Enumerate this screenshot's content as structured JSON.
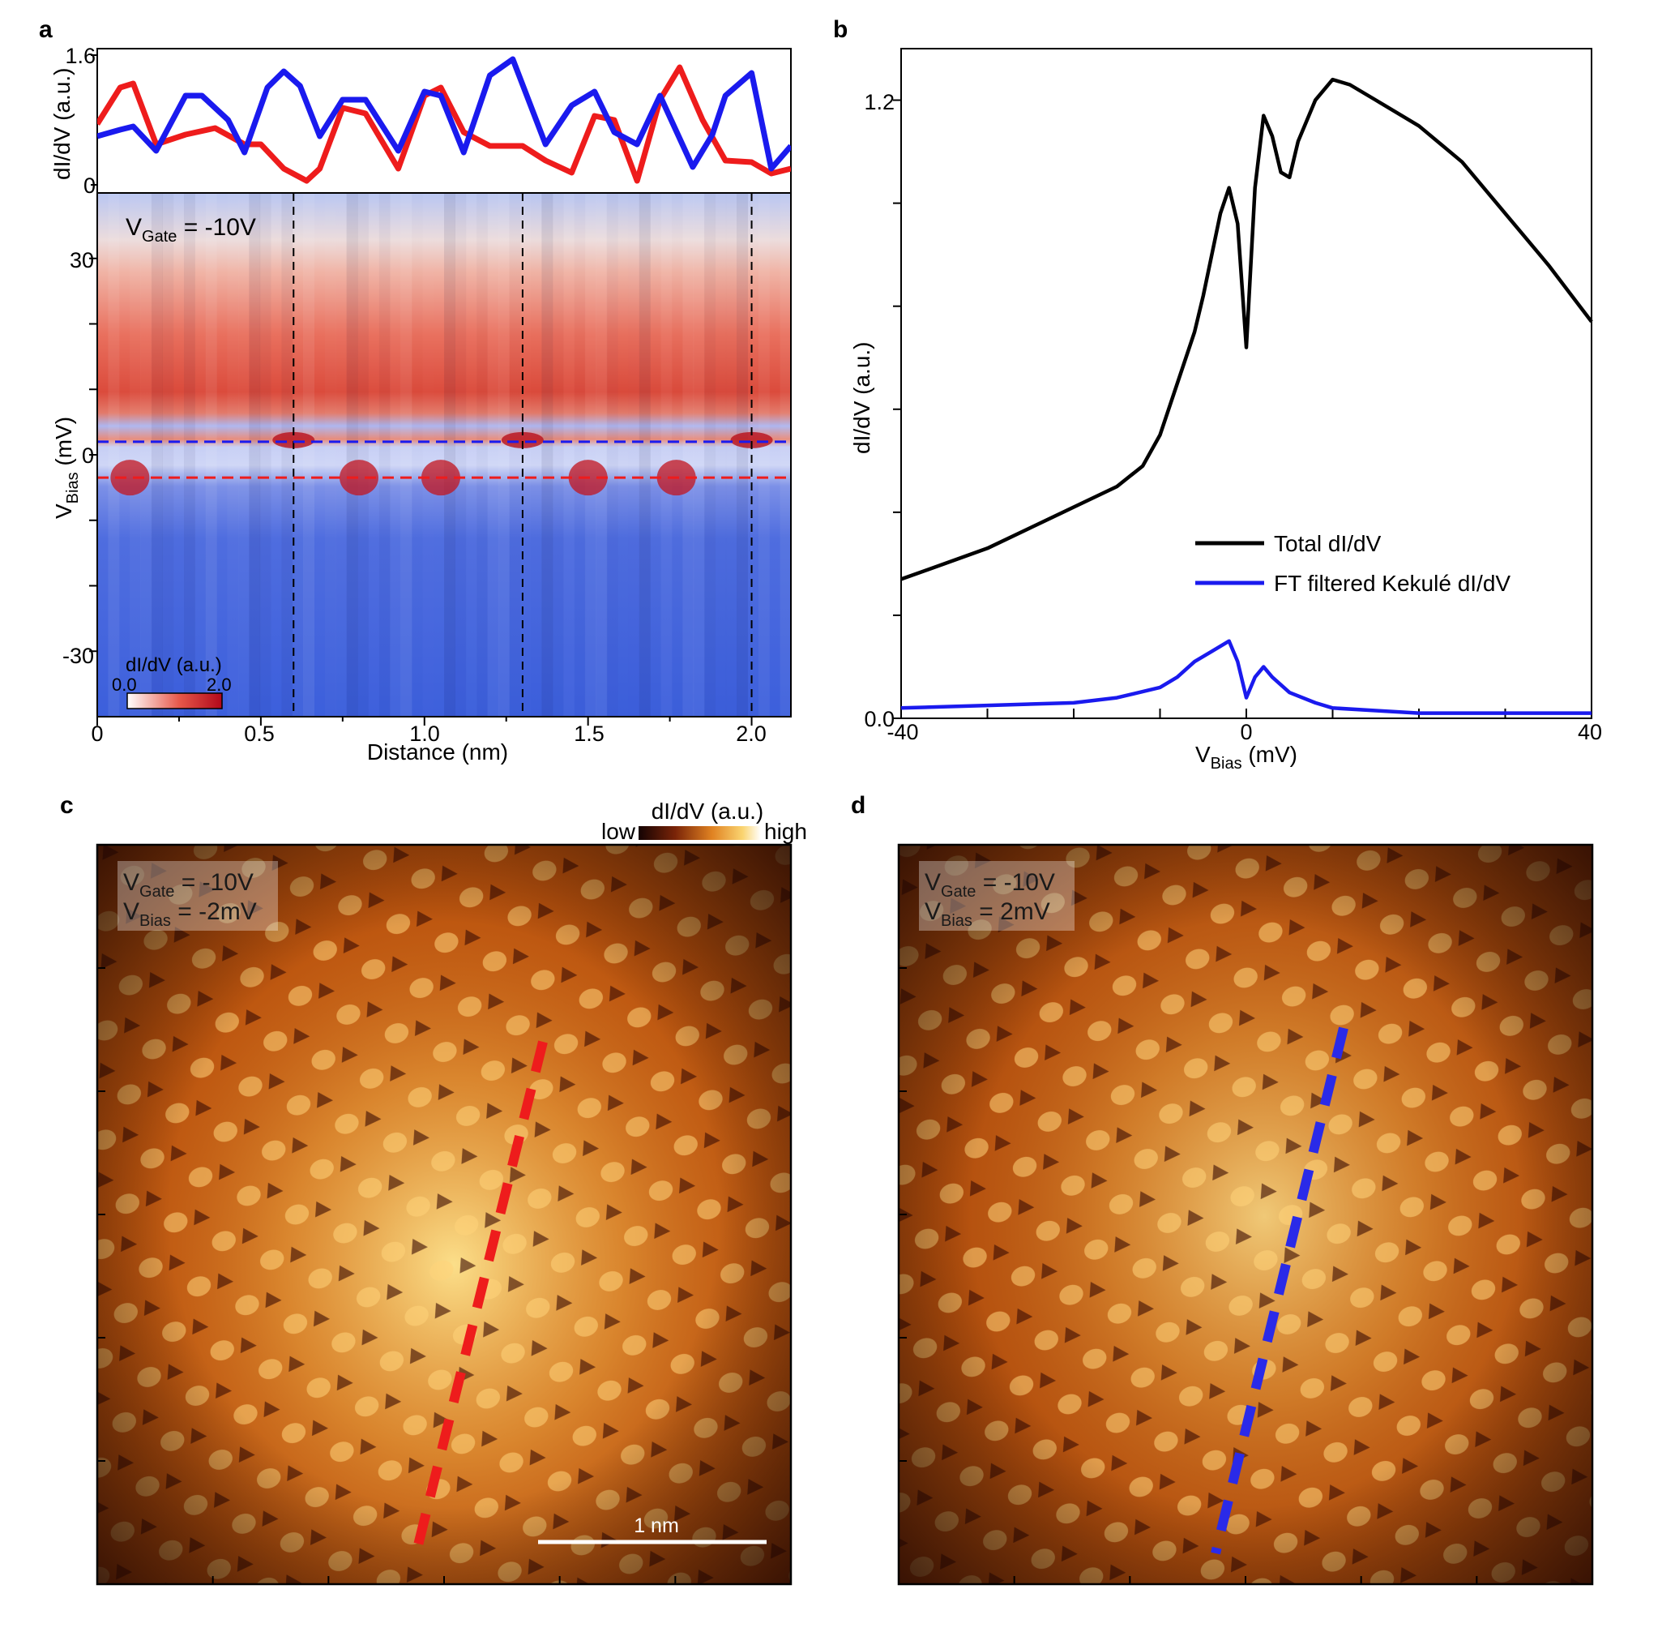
{
  "panels": {
    "a": "a",
    "b": "b",
    "c": "c",
    "d": "d"
  },
  "colors": {
    "red": "#ee1c1c",
    "blue": "#1a1aee",
    "black": "#000000"
  },
  "panel_a": {
    "top_ylabel": "dI/dV (a.u.)",
    "top_yticks": [
      "1.6",
      "0"
    ],
    "top_ylim": [
      0,
      1.6
    ],
    "gate_label_main": "V",
    "gate_label_sub": "Gate",
    "gate_label_value": " = -10V",
    "ylabel_main": "V",
    "ylabel_sub": "Bias",
    "ylabel_unit": " (mV)",
    "yticks": [
      "30",
      "0",
      "-30"
    ],
    "ylim": [
      -40,
      40
    ],
    "xlabel": "Distance (nm)",
    "xticks": [
      "0",
      "0.5",
      "1.0",
      "1.5",
      "2.0"
    ],
    "xlim": [
      0,
      2.12
    ],
    "colorbar_title": "dI/dV (a.u.)",
    "colorbar_min": "0.0",
    "colorbar_max": "2.0",
    "vlines_nm": [
      0.6,
      1.3,
      2.0
    ],
    "hline_blue_mV": 2,
    "hline_red_mV": -2
  },
  "panel_b": {
    "ylabel": "dI/dV (a.u.)",
    "xlabel_main": "V",
    "xlabel_sub": "Bias",
    "xlabel_unit": " (mV)",
    "xticks": [
      "-40",
      "0",
      "40"
    ],
    "yticks": [
      "1.2",
      "0.0"
    ],
    "legend": [
      "Total dI/dV",
      "FT filtered Kekulé dI/dV"
    ]
  },
  "panel_c": {
    "gate_main": "V",
    "gate_sub": "Gate",
    "gate_val": " = -10V",
    "bias_main": "V",
    "bias_sub": "Bias",
    "bias_val": " = -2mV",
    "colorbar_title": "dI/dV (a.u.)",
    "colorbar_low": "low",
    "colorbar_high": "high",
    "scalebar": "1 nm"
  },
  "panel_d": {
    "gate_main": "V",
    "gate_sub": "Gate",
    "gate_val": " = -10V",
    "bias_main": "V",
    "bias_sub": "Bias",
    "bias_val": " = 2mV"
  },
  "chart_data": [
    {
      "type": "line",
      "panel": "a-top",
      "xlabel": "",
      "ylabel": "dI/dV (a.u.)",
      "xlim": [
        0,
        2.12
      ],
      "ylim": [
        0,
        1.6
      ],
      "series": [
        {
          "name": "blue (V_Bias = 2 mV)",
          "color": "#1a1aee",
          "x": [
            0,
            0.07,
            0.11,
            0.18,
            0.27,
            0.32,
            0.4,
            0.45,
            0.52,
            0.57,
            0.62,
            0.68,
            0.75,
            0.82,
            0.92,
            1.0,
            1.05,
            1.12,
            1.2,
            1.27,
            1.37,
            1.45,
            1.52,
            1.58,
            1.65,
            1.72,
            1.82,
            1.88,
            1.92,
            2.0,
            2.06,
            2.12
          ],
          "y": [
            0.6,
            0.68,
            0.72,
            0.42,
            1.1,
            1.1,
            0.8,
            0.4,
            1.2,
            1.4,
            1.22,
            0.6,
            1.05,
            1.05,
            0.42,
            1.15,
            1.1,
            0.4,
            1.35,
            1.55,
            0.5,
            0.98,
            1.15,
            0.65,
            0.5,
            1.1,
            0.22,
            0.62,
            1.1,
            1.38,
            0.2,
            0.48
          ]
        },
        {
          "name": "red (V_Bias = -2 mV)",
          "color": "#ee1c1c",
          "x": [
            0,
            0.07,
            0.11,
            0.18,
            0.27,
            0.36,
            0.45,
            0.5,
            0.57,
            0.64,
            0.68,
            0.75,
            0.82,
            0.92,
            1.0,
            1.05,
            1.12,
            1.2,
            1.3,
            1.37,
            1.45,
            1.52,
            1.58,
            1.65,
            1.72,
            1.78,
            1.85,
            1.92,
            2.0,
            2.06,
            2.12
          ],
          "y": [
            0.75,
            1.2,
            1.25,
            0.5,
            0.62,
            0.7,
            0.5,
            0.5,
            0.2,
            0.05,
            0.2,
            0.95,
            0.88,
            0.2,
            1.1,
            1.2,
            0.65,
            0.48,
            0.48,
            0.3,
            0.15,
            0.85,
            0.8,
            0.05,
            1.05,
            1.45,
            0.8,
            0.3,
            0.28,
            0.14,
            0.2
          ]
        }
      ]
    },
    {
      "type": "heatmap",
      "panel": "a-bottom",
      "title": "V_Gate = -10V",
      "xlabel": "Distance (nm)",
      "ylabel": "V_Bias (mV)",
      "xlim": [
        0,
        2.12
      ],
      "ylim": [
        -40,
        40
      ],
      "colorbar_range": [
        0.0,
        2.0
      ],
      "row_profile": {
        "bias_mV": [
          40,
          36,
          32,
          28,
          24,
          20,
          16,
          12,
          8,
          4,
          2,
          0,
          -2,
          -4,
          -8,
          -12,
          -20,
          -28,
          -36,
          -40
        ],
        "value": [
          0.85,
          1.0,
          1.25,
          1.35,
          1.45,
          1.55,
          1.6,
          1.65,
          1.6,
          1.4,
          1.5,
          0.6,
          1.4,
          0.4,
          0.25,
          0.2,
          0.18,
          0.15,
          0.15,
          0.15
        ]
      },
      "peaks_at_+2mV_nm": [
        0.6,
        1.3,
        2.0
      ],
      "peaks_at_-2mV_nm": [
        0.1,
        0.8,
        1.05,
        1.5,
        1.77
      ]
    },
    {
      "type": "line",
      "panel": "b",
      "xlabel": "V_Bias (mV)",
      "ylabel": "dI/dV (a.u.)",
      "xlim": [
        -40,
        40
      ],
      "ylim": [
        0,
        1.3
      ],
      "series": [
        {
          "name": "Total dI/dV",
          "color": "#000000",
          "x": [
            -40,
            -35,
            -30,
            -25,
            -20,
            -15,
            -12,
            -10,
            -8,
            -6,
            -5,
            -4,
            -3,
            -2,
            -1,
            0,
            1,
            2,
            3,
            4,
            5,
            6,
            8,
            10,
            12,
            15,
            20,
            25,
            30,
            35,
            40
          ],
          "y": [
            0.27,
            0.3,
            0.33,
            0.37,
            0.41,
            0.45,
            0.49,
            0.55,
            0.65,
            0.75,
            0.82,
            0.9,
            0.98,
            1.03,
            0.96,
            0.72,
            1.03,
            1.17,
            1.13,
            1.06,
            1.05,
            1.12,
            1.2,
            1.24,
            1.23,
            1.2,
            1.15,
            1.08,
            0.98,
            0.88,
            0.77
          ]
        },
        {
          "name": "FT filtered Kekulé dI/dV",
          "color": "#1a1aee",
          "x": [
            -40,
            -30,
            -20,
            -15,
            -10,
            -8,
            -6,
            -4,
            -2,
            -1,
            0,
            1,
            2,
            3,
            5,
            8,
            10,
            15,
            20,
            30,
            40
          ],
          "y": [
            0.02,
            0.025,
            0.03,
            0.04,
            0.06,
            0.08,
            0.11,
            0.13,
            0.15,
            0.11,
            0.04,
            0.08,
            0.1,
            0.08,
            0.05,
            0.03,
            0.02,
            0.015,
            0.01,
            0.01,
            0.01
          ]
        }
      ]
    }
  ]
}
